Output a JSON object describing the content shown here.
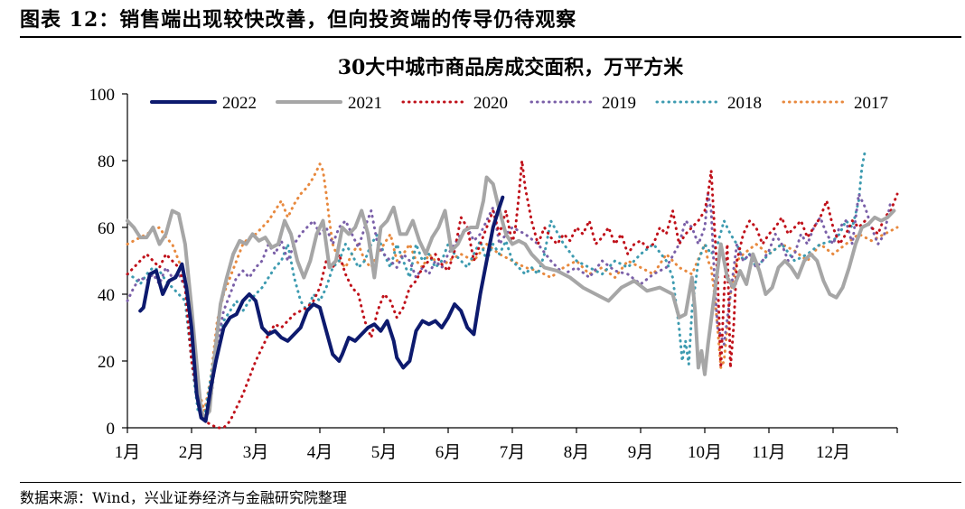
{
  "figure": {
    "title": "图表 12：销售端出现较快改善，但向投资端的传导仍待观察",
    "source": "数据来源：Wind，兴业证券经济与金融研究院整理"
  },
  "colors": {
    "2022": "#0d1a6e",
    "2021": "#a6a6a6",
    "2020": "#c0111a",
    "2019": "#7a5fa8",
    "2018": "#3d9bb0",
    "2017": "#e8893e"
  },
  "chart_data": {
    "type": "line",
    "title": "30大中城市商品房成交面积，万平方米",
    "xlabel": "",
    "ylabel": "",
    "ylim": [
      0,
      100
    ],
    "yticks": [
      0,
      20,
      40,
      60,
      80,
      100
    ],
    "x_unit": "month (1.0 = start of 1月, 13.0 = end of 12月)",
    "xlim": [
      1,
      13
    ],
    "month_labels": [
      "1月",
      "2月",
      "3月",
      "4月",
      "5月",
      "6月",
      "7月",
      "8月",
      "9月",
      "10月",
      "11月",
      "12月"
    ],
    "legend_position": "top",
    "series": [
      {
        "name": "2022",
        "style": "solid",
        "width": 4,
        "x": [
          1.2,
          1.25,
          1.35,
          1.45,
          1.55,
          1.65,
          1.75,
          1.85,
          1.92,
          2.0,
          2.08,
          2.15,
          2.22,
          2.3,
          2.38,
          2.5,
          2.6,
          2.7,
          2.8,
          2.9,
          3.0,
          3.1,
          3.2,
          3.3,
          3.4,
          3.5,
          3.6,
          3.7,
          3.8,
          3.9,
          4.0,
          4.1,
          4.2,
          4.3,
          4.35,
          4.45,
          4.55,
          4.65,
          4.75,
          4.85,
          4.95,
          5.05,
          5.15,
          5.2,
          5.3,
          5.4,
          5.5,
          5.6,
          5.7,
          5.8,
          5.9,
          6.0,
          6.1,
          6.2,
          6.3,
          6.4,
          6.5,
          6.6,
          6.7,
          6.78,
          6.85
        ],
        "y": [
          35,
          36,
          46,
          47,
          40,
          44,
          45,
          49,
          42,
          30,
          10,
          3,
          2,
          12,
          20,
          30,
          33,
          34,
          38,
          40,
          38,
          30,
          28,
          29,
          27,
          26,
          28,
          30,
          35,
          37,
          36,
          29,
          22,
          20,
          22,
          27,
          26,
          28,
          30,
          31,
          29,
          32,
          26,
          21,
          18,
          20,
          29,
          32,
          31,
          32,
          30,
          33,
          37,
          35,
          30,
          28,
          40,
          50,
          60,
          65,
          69
        ]
      },
      {
        "name": "2021",
        "style": "solid",
        "width": 4,
        "x": [
          1.0,
          1.1,
          1.2,
          1.3,
          1.4,
          1.5,
          1.6,
          1.7,
          1.8,
          1.9,
          2.0,
          2.1,
          2.15,
          2.2,
          2.28,
          2.35,
          2.45,
          2.55,
          2.65,
          2.75,
          2.85,
          2.95,
          3.05,
          3.15,
          3.25,
          3.35,
          3.45,
          3.55,
          3.65,
          3.75,
          3.85,
          3.95,
          4.05,
          4.15,
          4.25,
          4.35,
          4.45,
          4.55,
          4.65,
          4.75,
          4.85,
          4.95,
          5.05,
          5.15,
          5.25,
          5.35,
          5.45,
          5.55,
          5.65,
          5.75,
          5.85,
          5.95,
          6.05,
          6.15,
          6.25,
          6.35,
          6.45,
          6.55,
          6.6,
          6.7,
          6.8,
          6.9,
          7.0,
          7.1,
          7.2,
          7.3,
          7.5,
          7.7,
          7.9,
          8.1,
          8.3,
          8.5,
          8.7,
          8.9,
          9.1,
          9.3,
          9.5,
          9.6,
          9.7,
          9.8,
          9.85,
          9.9,
          9.95,
          10.0,
          10.05,
          10.15,
          10.25,
          10.35,
          10.45,
          10.55,
          10.65,
          10.75,
          10.85,
          10.95,
          11.05,
          11.15,
          11.25,
          11.35,
          11.45,
          11.55,
          11.65,
          11.75,
          11.85,
          11.95,
          12.05,
          12.15,
          12.25,
          12.35,
          12.45,
          12.55,
          12.65,
          12.75,
          12.85,
          12.95
        ],
        "y": [
          62,
          60,
          57,
          57,
          60,
          55,
          58,
          65,
          64,
          55,
          36,
          15,
          5,
          3,
          5,
          20,
          37,
          45,
          52,
          56,
          55,
          58,
          56,
          57,
          54,
          55,
          62,
          58,
          50,
          45,
          50,
          58,
          62,
          48,
          50,
          60,
          58,
          60,
          65,
          58,
          45,
          60,
          62,
          66,
          58,
          58,
          62,
          56,
          52,
          57,
          60,
          65,
          53,
          55,
          59,
          60,
          60,
          68,
          75,
          73,
          65,
          58,
          55,
          56,
          55,
          52,
          48,
          47,
          45,
          42,
          40,
          38,
          42,
          44,
          41,
          42,
          40,
          33,
          34,
          45,
          35,
          18,
          23,
          16,
          25,
          40,
          55,
          45,
          42,
          47,
          43,
          52,
          47,
          40,
          42,
          48,
          50,
          48,
          45,
          50,
          52,
          50,
          44,
          40,
          39,
          42,
          48,
          55,
          60,
          61,
          63,
          62,
          63,
          65
        ]
      },
      {
        "name": "2020",
        "style": "dotted",
        "width": 3,
        "x": [
          1.0,
          1.1,
          1.2,
          1.3,
          1.4,
          1.5,
          1.6,
          1.7,
          1.8,
          1.9,
          2.0,
          2.1,
          2.2,
          2.3,
          2.4,
          2.5,
          2.6,
          2.7,
          2.8,
          2.9,
          3.0,
          3.1,
          3.2,
          3.3,
          3.4,
          3.5,
          3.6,
          3.7,
          3.8,
          3.9,
          4.0,
          4.1,
          4.2,
          4.3,
          4.4,
          4.5,
          4.6,
          4.7,
          4.8,
          4.9,
          5.0,
          5.1,
          5.2,
          5.3,
          5.4,
          5.5,
          5.6,
          5.7,
          5.8,
          5.9,
          6.0,
          6.1,
          6.2,
          6.3,
          6.4,
          6.5,
          6.6,
          6.7,
          6.8,
          6.9,
          7.0,
          7.05,
          7.1,
          7.15,
          7.2,
          7.3,
          7.4,
          7.5,
          7.6,
          7.7,
          7.8,
          7.9,
          8.0,
          8.1,
          8.2,
          8.3,
          8.4,
          8.5,
          8.6,
          8.7,
          8.8,
          8.9,
          9.0,
          9.1,
          9.2,
          9.3,
          9.4,
          9.5,
          9.6,
          9.7,
          9.8,
          9.9,
          10.0,
          10.05,
          10.1,
          10.15,
          10.2,
          10.25,
          10.3,
          10.35,
          10.4,
          10.45,
          10.5,
          10.6,
          10.7,
          10.8,
          10.9,
          11.0,
          11.1,
          11.2,
          11.3,
          11.4,
          11.5,
          11.6,
          11.7,
          11.8,
          11.9,
          12.0,
          12.1,
          12.2,
          12.3,
          12.4,
          12.5,
          12.6,
          12.7,
          12.8,
          12.9,
          13.0
        ],
        "y": [
          46,
          48,
          50,
          52,
          50,
          48,
          52,
          50,
          48,
          42,
          20,
          8,
          2,
          1,
          0,
          0,
          2,
          6,
          10,
          15,
          20,
          24,
          28,
          31,
          30,
          32,
          34,
          35,
          36,
          38,
          42,
          50,
          48,
          52,
          46,
          42,
          40,
          32,
          27,
          35,
          40,
          38,
          33,
          36,
          42,
          44,
          48,
          50,
          52,
          49,
          47,
          53,
          63,
          60,
          50,
          55,
          60,
          65,
          58,
          65,
          55,
          60,
          69,
          80,
          72,
          62,
          55,
          60,
          57,
          55,
          58,
          56,
          60,
          58,
          62,
          55,
          57,
          60,
          55,
          58,
          52,
          55,
          56,
          54,
          55,
          60,
          58,
          65,
          55,
          58,
          60,
          62,
          65,
          70,
          77,
          60,
          45,
          18,
          40,
          55,
          18,
          30,
          50,
          58,
          62,
          60,
          55,
          58,
          60,
          63,
          58,
          60,
          62,
          57,
          60,
          63,
          68,
          60,
          55,
          58,
          62,
          60,
          62,
          60,
          58,
          63,
          65,
          70
        ]
      },
      {
        "name": "2019",
        "style": "dotted",
        "width": 3,
        "x": [
          1.0,
          1.1,
          1.2,
          1.3,
          1.4,
          1.5,
          1.6,
          1.7,
          1.8,
          1.9,
          2.0,
          2.1,
          2.2,
          2.3,
          2.4,
          2.5,
          2.6,
          2.7,
          2.8,
          2.9,
          3.0,
          3.1,
          3.2,
          3.3,
          3.4,
          3.5,
          3.6,
          3.7,
          3.8,
          3.9,
          4.0,
          4.1,
          4.2,
          4.3,
          4.4,
          4.5,
          4.6,
          4.7,
          4.8,
          4.9,
          5.0,
          5.1,
          5.2,
          5.3,
          5.4,
          5.5,
          5.6,
          5.7,
          5.8,
          5.9,
          6.0,
          6.1,
          6.2,
          6.3,
          6.4,
          6.5,
          6.6,
          6.7,
          6.8,
          6.9,
          7.0,
          7.2,
          7.4,
          7.6,
          7.8,
          8.0,
          8.2,
          8.4,
          8.6,
          8.8,
          9.0,
          9.2,
          9.4,
          9.6,
          9.7,
          9.8,
          9.9,
          10.0,
          10.05,
          10.1,
          10.15,
          10.2,
          10.3,
          10.4,
          10.5,
          10.6,
          10.7,
          10.8,
          10.9,
          11.0,
          11.1,
          11.2,
          11.3,
          11.4,
          11.5,
          11.6,
          11.7,
          11.8,
          11.9,
          12.0,
          12.1,
          12.2,
          12.3,
          12.4,
          12.5,
          12.6,
          12.7,
          12.8,
          12.9
        ],
        "y": [
          38,
          42,
          45,
          44,
          46,
          43,
          48,
          45,
          46,
          42,
          25,
          8,
          3,
          8,
          25,
          35,
          40,
          45,
          47,
          45,
          48,
          50,
          55,
          52,
          56,
          50,
          55,
          58,
          60,
          62,
          58,
          60,
          55,
          60,
          62,
          58,
          54,
          60,
          65,
          55,
          52,
          50,
          48,
          52,
          50,
          45,
          48,
          46,
          50,
          48,
          52,
          55,
          58,
          60,
          56,
          58,
          62,
          66,
          55,
          58,
          60,
          58,
          55,
          50,
          46,
          48,
          45,
          50,
          47,
          46,
          43,
          46,
          48,
          55,
          62,
          60,
          55,
          60,
          70,
          65,
          45,
          30,
          25,
          40,
          55,
          50,
          52,
          48,
          50,
          53,
          58,
          55,
          50,
          52,
          58,
          55,
          60,
          63,
          58,
          55,
          60,
          62,
          55,
          70,
          66,
          60,
          55,
          58,
          68
        ]
      },
      {
        "name": "2018",
        "style": "dotted",
        "width": 3,
        "x": [
          1.0,
          1.1,
          1.2,
          1.3,
          1.4,
          1.5,
          1.6,
          1.7,
          1.8,
          1.9,
          2.0,
          2.1,
          2.2,
          2.3,
          2.4,
          2.5,
          2.6,
          2.7,
          2.8,
          2.9,
          3.0,
          3.1,
          3.2,
          3.3,
          3.4,
          3.5,
          3.6,
          3.7,
          3.8,
          3.9,
          4.0,
          4.1,
          4.2,
          4.3,
          4.4,
          4.5,
          4.6,
          4.7,
          4.8,
          4.9,
          5.0,
          5.1,
          5.2,
          5.3,
          5.4,
          5.5,
          5.6,
          5.7,
          5.8,
          5.9,
          6.0,
          6.1,
          6.2,
          6.3,
          6.4,
          6.5,
          6.6,
          6.7,
          6.8,
          6.9,
          7.0,
          7.1,
          7.2,
          7.3,
          7.4,
          7.5,
          7.6,
          7.8,
          8.0,
          8.2,
          8.4,
          8.6,
          8.8,
          9.0,
          9.2,
          9.4,
          9.5,
          9.6,
          9.65,
          9.7,
          9.75,
          9.8,
          9.9,
          10.0,
          10.1,
          10.2,
          10.3,
          10.4,
          10.5,
          10.6,
          10.7,
          10.8,
          10.9,
          11.0,
          11.2,
          11.4,
          11.6,
          11.8,
          12.0,
          12.1,
          12.2,
          12.3,
          12.4,
          12.45,
          12.5
        ],
        "y": [
          46,
          45,
          43,
          46,
          48,
          47,
          44,
          42,
          40,
          38,
          20,
          5,
          3,
          15,
          28,
          32,
          35,
          38,
          35,
          38,
          40,
          42,
          45,
          48,
          50,
          55,
          45,
          38,
          35,
          40,
          38,
          42,
          48,
          50,
          55,
          52,
          48,
          50,
          55,
          58,
          52,
          48,
          55,
          50,
          45,
          55,
          50,
          52,
          48,
          50,
          55,
          52,
          50,
          48,
          52,
          56,
          50,
          55,
          52,
          56,
          50,
          48,
          46,
          48,
          46,
          52,
          62,
          55,
          50,
          48,
          46,
          50,
          48,
          52,
          55,
          50,
          45,
          30,
          20,
          26,
          19,
          35,
          50,
          55,
          52,
          55,
          62,
          58,
          55,
          50,
          52,
          48,
          50,
          52,
          55,
          50,
          52,
          55,
          56,
          58,
          62,
          60,
          68,
          78,
          83
        ]
      },
      {
        "name": "2017",
        "style": "dotted",
        "width": 3,
        "x": [
          1.0,
          1.1,
          1.2,
          1.3,
          1.4,
          1.5,
          1.6,
          1.7,
          1.8,
          1.9,
          2.0,
          2.1,
          2.2,
          2.3,
          2.4,
          2.5,
          2.6,
          2.7,
          2.8,
          2.9,
          3.0,
          3.1,
          3.2,
          3.3,
          3.4,
          3.5,
          3.6,
          3.7,
          3.8,
          3.9,
          4.0,
          4.05,
          4.1,
          4.15,
          4.2,
          4.3,
          4.4,
          4.5,
          4.6,
          4.7,
          4.8,
          4.9,
          5.0,
          5.1,
          5.2,
          5.3,
          5.4,
          5.5,
          5.6,
          5.7,
          5.8,
          5.9,
          6.0,
          6.2,
          6.4,
          6.6,
          6.8,
          7.0,
          7.2,
          7.4,
          7.6,
          7.8,
          8.0,
          8.2,
          8.4,
          8.6,
          8.8,
          9.0,
          9.2,
          9.4,
          9.6,
          9.8,
          10.0,
          10.05,
          10.1,
          10.15,
          10.2,
          10.25,
          10.3,
          10.35,
          10.4,
          10.5,
          10.6,
          10.8,
          11.0,
          11.2,
          11.4,
          11.6,
          11.8,
          12.0,
          12.2,
          12.4,
          12.6,
          12.8,
          13.0
        ],
        "y": [
          55,
          56,
          57,
          58,
          59,
          60,
          57,
          55,
          50,
          45,
          30,
          12,
          5,
          15,
          32,
          40,
          45,
          50,
          55,
          57,
          58,
          60,
          62,
          65,
          68,
          63,
          67,
          70,
          72,
          75,
          79,
          77,
          70,
          62,
          55,
          50,
          48,
          52,
          55,
          50,
          48,
          52,
          55,
          58,
          50,
          52,
          55,
          50,
          48,
          52,
          50,
          48,
          50,
          52,
          50,
          55,
          52,
          50,
          48,
          47,
          45,
          48,
          50,
          46,
          48,
          45,
          50,
          48,
          46,
          52,
          48,
          46,
          55,
          50,
          48,
          40,
          30,
          18,
          20,
          30,
          40,
          50,
          52,
          55,
          52,
          55,
          53,
          50,
          55,
          52,
          55,
          58,
          56,
          58,
          60
        ]
      }
    ]
  }
}
